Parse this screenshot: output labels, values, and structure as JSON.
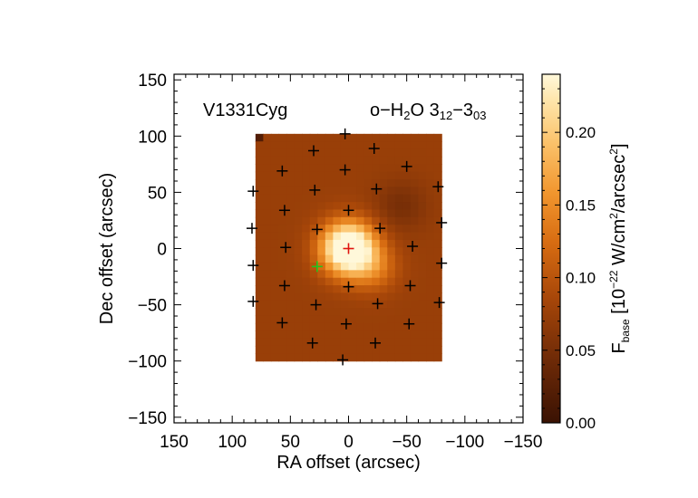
{
  "chart_data": {
    "type": "heatmap",
    "xlabel": "RA offset (arcsec)",
    "ylabel": "Dec offset (arcsec)",
    "xlim": [
      150,
      -150
    ],
    "ylim": [
      -155,
      155
    ],
    "xticks": [
      150,
      100,
      50,
      0,
      -50,
      -100,
      -150
    ],
    "xtick_labels": [
      "150",
      "100",
      "50",
      "0",
      "−50",
      "−100",
      "−150"
    ],
    "yticks": [
      150,
      100,
      50,
      0,
      -50,
      -100,
      -150
    ],
    "ytick_labels": [
      "150",
      "100",
      "50",
      "0",
      "−50",
      "−100",
      "−150"
    ],
    "map_extent": {
      "ra": [
        80,
        -80
      ],
      "dec": [
        -100,
        102
      ]
    },
    "annotations": {
      "source": "V1331Cyg",
      "line": {
        "prefix": "o−H",
        "sub1": "2",
        "mid": "O 3",
        "sub2": "12",
        "dash": "−3",
        "sub3": "03"
      }
    },
    "colorbar": {
      "range": [
        0,
        0.24
      ],
      "ticks": [
        0.0,
        0.05,
        0.1,
        0.15,
        0.2
      ],
      "tick_labels": [
        "0.00",
        "0.05",
        "0.10",
        "0.15",
        "0.20"
      ],
      "label": {
        "F": "F",
        "F_sub": "base",
        "open": " [10",
        "exp1": "−22",
        "mid": " W/cm",
        "exp2": "2",
        "mid2": "/arcsec",
        "exp3": "2",
        "close": "]"
      }
    },
    "background_level": 0.075,
    "emission_peaks": [
      {
        "ra": 0,
        "dec": 0,
        "peak": 0.235,
        "sigma": 16
      },
      {
        "ra": -22,
        "dec": -18,
        "peak": 0.05,
        "sigma": 14
      }
    ],
    "absorption_dips": [
      {
        "ra": -45,
        "dec": 38,
        "depth": 0.025,
        "sigma": 16
      }
    ],
    "spaxels": [
      {
        "ra": 3,
        "dec": 102
      },
      {
        "ra": 30,
        "dec": 87
      },
      {
        "ra": -22,
        "dec": 89
      },
      {
        "ra": 57,
        "dec": 69
      },
      {
        "ra": 3,
        "dec": 70
      },
      {
        "ra": -50,
        "dec": 73
      },
      {
        "ra": 82,
        "dec": 51
      },
      {
        "ra": 29,
        "dec": 52
      },
      {
        "ra": -24,
        "dec": 53
      },
      {
        "ra": -77,
        "dec": 55
      },
      {
        "ra": 55,
        "dec": 34
      },
      {
        "ra": 0,
        "dec": 34
      },
      {
        "ra": -80,
        "dec": 23
      },
      {
        "ra": 83,
        "dec": 18
      },
      {
        "ra": 27,
        "dec": 17
      },
      {
        "ra": -27,
        "dec": 18
      },
      {
        "ra": 54,
        "dec": 1
      },
      {
        "ra": -55,
        "dec": 2
      },
      {
        "ra": 82,
        "dec": -15
      },
      {
        "ra": -80,
        "dec": -13
      },
      {
        "ra": 55,
        "dec": -33
      },
      {
        "ra": 0,
        "dec": -34
      },
      {
        "ra": -53,
        "dec": -33
      },
      {
        "ra": 82,
        "dec": -47
      },
      {
        "ra": 28,
        "dec": -50
      },
      {
        "ra": -25,
        "dec": -49
      },
      {
        "ra": -78,
        "dec": -48
      },
      {
        "ra": 57,
        "dec": -66
      },
      {
        "ra": 2,
        "dec": -67
      },
      {
        "ra": -52,
        "dec": -67
      },
      {
        "ra": 31,
        "dec": -84
      },
      {
        "ra": -23,
        "dec": -84
      },
      {
        "ra": 5,
        "dec": -99
      }
    ],
    "central_spaxel": {
      "ra": 0,
      "dec": 0,
      "color": "#e0140f"
    },
    "source_position": {
      "ra": 27,
      "dec": -16,
      "color": "#22c41f"
    },
    "marker_color": "#000000"
  }
}
